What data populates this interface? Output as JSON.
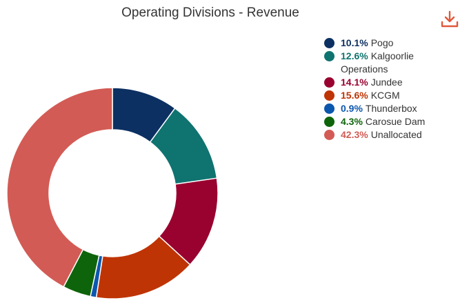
{
  "header": {
    "download_icon": "download-icon",
    "download_color": "#e0573b"
  },
  "chart_data": {
    "type": "pie",
    "title": "Operating Divisions - Revenue",
    "donut": true,
    "legend_position": "right",
    "slices": [
      {
        "label": "Pogo",
        "percent_label": "10.1%",
        "value": 10.1,
        "color": "#0c3062"
      },
      {
        "label": "Kalgoorlie Operations",
        "percent_label": "12.6%",
        "value": 12.6,
        "color": "#0f7370"
      },
      {
        "label": "Jundee",
        "percent_label": "14.1%",
        "value": 14.1,
        "color": "#99012f"
      },
      {
        "label": "KCGM",
        "percent_label": "15.6%",
        "value": 15.6,
        "color": "#bf3404"
      },
      {
        "label": "Thunderbox",
        "percent_label": "0.9%",
        "value": 0.9,
        "color": "#0c57ae"
      },
      {
        "label": "Carosue Dam",
        "percent_label": "4.3%",
        "value": 4.3,
        "color": "#0e640a"
      },
      {
        "label": "Unallocated",
        "percent_label": "42.3%",
        "value": 42.3,
        "color": "#d35b55"
      }
    ]
  }
}
